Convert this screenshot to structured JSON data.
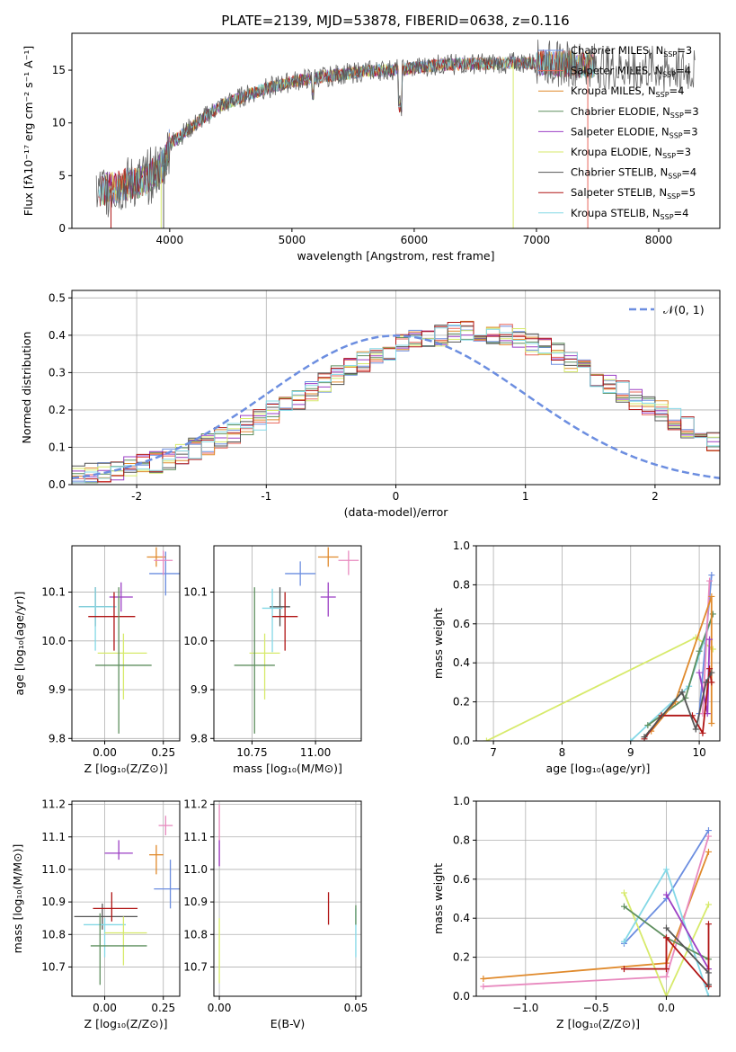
{
  "figure_title": "PLATE=2139, MJD=53878, FIBERID=0638, z=0.116",
  "colors": {
    "chabrier_miles": "#6c8ee0",
    "salpeter_miles": "#e8655a",
    "kroupa_miles": "#e08a2c",
    "chabrier_elodie": "#5f8f5f",
    "salpeter_elodie": "#9b3fc4",
    "kroupa_elodie": "#d7ea6b",
    "chabrier_stelib": "#555555",
    "salpeter_stelib": "#b01515",
    "kroupa_stelib": "#84d8e6",
    "pink": "#e88abf",
    "normal": "#6c8ee0",
    "grid": "#b0b0b0"
  },
  "chart_data": [
    {
      "id": "spectrum",
      "type": "line",
      "xlabel": "wavelength [Angstrom, rest frame]",
      "ylabel": "Flux [fλ10⁻¹⁷ erg cm⁻² s⁻¹ A⁻¹]",
      "xlim": [
        3200,
        8500
      ],
      "ylim": [
        0,
        18.5
      ],
      "xticks": [
        4000,
        5000,
        6000,
        7000,
        8000
      ],
      "yticks": [
        0,
        5,
        10,
        15
      ],
      "grid": false,
      "legend_position": "right",
      "legend": [
        {
          "label": "Chabrier MILES, N",
          "sub": "SSP",
          "tail": "=3",
          "color": "chabrier_miles"
        },
        {
          "label": "Salpeter MILES, N",
          "sub": "SSP",
          "tail": "=4",
          "color": "salpeter_miles"
        },
        {
          "label": "Kroupa MILES, N",
          "sub": "SSP",
          "tail": "=4",
          "color": "kroupa_miles"
        },
        {
          "label": "Chabrier ELODIE, N",
          "sub": "SSP",
          "tail": "=3",
          "color": "chabrier_elodie"
        },
        {
          "label": "Salpeter ELODIE, N",
          "sub": "SSP",
          "tail": "=3",
          "color": "salpeter_elodie"
        },
        {
          "label": "Kroupa ELODIE, N",
          "sub": "SSP",
          "tail": "=3",
          "color": "kroupa_elodie"
        },
        {
          "label": "Chabrier STELIB, N",
          "sub": "SSP",
          "tail": "=4",
          "color": "chabrier_stelib"
        },
        {
          "label": "Salpeter STELIB, N",
          "sub": "SSP",
          "tail": "=5",
          "color": "salpeter_stelib"
        },
        {
          "label": "Kroupa STELIB, N",
          "sub": "SSP",
          "tail": "=4",
          "color": "kroupa_stelib"
        }
      ],
      "continuum": {
        "x": [
          3400,
          3600,
          3800,
          3950,
          4000,
          4200,
          4400,
          4600,
          4800,
          5000,
          5200,
          5400,
          5600,
          5800,
          6000,
          6200,
          6400,
          6600,
          6800,
          7000,
          7200,
          7400,
          7600,
          7800,
          8000,
          8200,
          8350
        ],
        "y": [
          3.5,
          4.0,
          4.6,
          6.0,
          8.0,
          9.8,
          11.5,
          12.5,
          13.3,
          13.9,
          14.3,
          14.6,
          14.9,
          15.0,
          15.2,
          15.5,
          15.6,
          15.6,
          15.7,
          15.7,
          15.6,
          15.5,
          15.3,
          15.2,
          15.1,
          15.0,
          14.9
        ]
      },
      "drops": [
        {
          "x": 3520,
          "y": 0,
          "color": "salpeter_stelib"
        },
        {
          "x": 3930,
          "y": 0,
          "color": "kroupa_elodie"
        },
        {
          "x": 3950,
          "y": 0,
          "color": "chabrier_stelib"
        },
        {
          "x": 6810,
          "y": 0,
          "color": "kroupa_elodie"
        },
        {
          "x": 7420,
          "y": 0,
          "color": "salpeter_miles"
        }
      ]
    },
    {
      "id": "residuals",
      "type": "histogram",
      "xlabel": "(data-model)/error",
      "ylabel": "Normed distribution",
      "xlim": [
        -2.5,
        2.5
      ],
      "ylim": [
        0,
        0.52
      ],
      "xticks": [
        -2,
        -1,
        0,
        1,
        2
      ],
      "yticks": [
        0.0,
        0.1,
        0.2,
        0.3,
        0.4,
        0.5
      ],
      "grid": true,
      "legend_position": "top-right",
      "legend": [
        {
          "label": "𝒩(0, 1)",
          "color": "normal",
          "dashed": true
        }
      ],
      "bin_edges_start": -2.5,
      "bin_width": 0.1,
      "base_values": [
        0.025,
        0.03,
        0.035,
        0.04,
        0.045,
        0.055,
        0.06,
        0.07,
        0.08,
        0.095,
        0.11,
        0.125,
        0.14,
        0.16,
        0.175,
        0.195,
        0.215,
        0.23,
        0.25,
        0.27,
        0.29,
        0.31,
        0.33,
        0.35,
        0.36,
        0.375,
        0.385,
        0.395,
        0.4,
        0.405,
        0.41,
        0.41,
        0.405,
        0.4,
        0.39,
        0.375,
        0.365,
        0.35,
        0.33,
        0.31,
        0.29,
        0.27,
        0.25,
        0.23,
        0.21,
        0.195,
        0.175,
        0.155,
        0.14,
        0.12
      ],
      "series_colors": [
        "chabrier_miles",
        "salpeter_miles",
        "kroupa_miles",
        "chabrier_elodie",
        "salpeter_elodie",
        "kroupa_elodie",
        "chabrier_stelib",
        "salpeter_stelib",
        "kroupa_stelib"
      ]
    },
    {
      "id": "age_vs_Z",
      "type": "errorbar",
      "xlabel": "Z [log₁₀(Z/Z⊙)]",
      "ylabel": "age  [log₁₀(age/yr)]",
      "xlim": [
        -0.14,
        0.32
      ],
      "ylim": [
        9.795,
        10.195
      ],
      "xticks": [
        0.0,
        0.25
      ],
      "xtick_labels": [
        "0.00",
        "0.25"
      ],
      "yticks": [
        9.8,
        9.9,
        10.0,
        10.1
      ],
      "grid": true,
      "points": [
        {
          "x": 0.26,
          "y": 10.138,
          "xl": 0.07,
          "xh": 0.07,
          "yl": 0.045,
          "yh": 0.045,
          "color": "chabrier_miles"
        },
        {
          "x": 0.22,
          "y": 10.172,
          "xl": 0.04,
          "xh": 0.04,
          "yl": 0.02,
          "yh": 0.02,
          "color": "kroupa_miles"
        },
        {
          "x": 0.25,
          "y": 10.165,
          "xl": 0.04,
          "xh": 0.04,
          "yl": 0.03,
          "yh": 0.02,
          "color": "pink"
        },
        {
          "x": 0.07,
          "y": 10.09,
          "xl": 0.05,
          "xh": 0.05,
          "yl": 0.03,
          "yh": 0.03,
          "color": "salpeter_elodie"
        },
        {
          "x": -0.04,
          "y": 10.07,
          "xl": 0.07,
          "xh": 0.07,
          "yl": 0.04,
          "yh": 0.04,
          "color": "chabrier_stelib"
        },
        {
          "x": -0.04,
          "y": 10.07,
          "xl": 0.07,
          "xh": 0.09,
          "yl": 0.09,
          "yh": 0.04,
          "color": "kroupa_stelib"
        },
        {
          "x": 0.04,
          "y": 10.05,
          "xl": 0.11,
          "xh": 0.09,
          "yl": 0.07,
          "yh": 0.05,
          "color": "salpeter_stelib"
        },
        {
          "x": 0.08,
          "y": 9.975,
          "xl": 0.11,
          "xh": 0.1,
          "yl": 0.095,
          "yh": 0.04,
          "color": "kroupa_elodie"
        },
        {
          "x": 0.06,
          "y": 9.95,
          "xl": 0.1,
          "xh": 0.14,
          "yl": 0.14,
          "yh": 0.16,
          "color": "chabrier_elodie"
        }
      ]
    },
    {
      "id": "age_vs_mass",
      "type": "errorbar",
      "xlabel": "mass [log₁₀(M/M⊙)]",
      "ylabel": "",
      "xlim": [
        10.6,
        11.18
      ],
      "ylim": [
        9.795,
        10.195
      ],
      "xticks": [
        10.75,
        11.0
      ],
      "xtick_labels": [
        "10.75",
        "11.00"
      ],
      "yticks": [
        9.8,
        9.9,
        10.0,
        10.1
      ],
      "grid": true,
      "points": [
        {
          "x": 10.94,
          "y": 10.138,
          "xl": 0.06,
          "xh": 0.06,
          "yl": 0.025,
          "yh": 0.025,
          "color": "chabrier_miles"
        },
        {
          "x": 11.05,
          "y": 10.172,
          "xl": 0.04,
          "xh": 0.04,
          "yl": 0.02,
          "yh": 0.02,
          "color": "kroupa_miles"
        },
        {
          "x": 11.13,
          "y": 10.165,
          "xl": 0.04,
          "xh": 0.04,
          "yl": 0.03,
          "yh": 0.02,
          "color": "pink"
        },
        {
          "x": 11.05,
          "y": 10.09,
          "xl": 0.03,
          "xh": 0.03,
          "yl": 0.04,
          "yh": 0.03,
          "color": "salpeter_elodie"
        },
        {
          "x": 10.86,
          "y": 10.07,
          "xl": 0.04,
          "xh": 0.04,
          "yl": 0.04,
          "yh": 0.04,
          "color": "chabrier_stelib"
        },
        {
          "x": 10.83,
          "y": 10.067,
          "xl": 0.04,
          "xh": 0.04,
          "yl": 0.09,
          "yh": 0.04,
          "color": "kroupa_stelib"
        },
        {
          "x": 10.88,
          "y": 10.05,
          "xl": 0.05,
          "xh": 0.05,
          "yl": 0.07,
          "yh": 0.05,
          "color": "salpeter_stelib"
        },
        {
          "x": 10.8,
          "y": 9.975,
          "xl": 0.06,
          "xh": 0.06,
          "yl": 0.095,
          "yh": 0.04,
          "color": "kroupa_elodie"
        },
        {
          "x": 10.76,
          "y": 9.95,
          "xl": 0.08,
          "xh": 0.08,
          "yl": 0.14,
          "yh": 0.16,
          "color": "chabrier_elodie"
        }
      ]
    },
    {
      "id": "weight_vs_age",
      "type": "line",
      "xlabel": "age  [log₁₀(age/yr)]",
      "ylabel": "mass weight",
      "xlim": [
        6.75,
        10.3
      ],
      "ylim": [
        0,
        1.0
      ],
      "xticks": [
        7,
        8,
        9,
        10
      ],
      "xtick_labels": [
        "7",
        "8",
        "9",
        "10"
      ],
      "yticks": [
        0.0,
        0.2,
        0.4,
        0.6,
        0.8,
        1.0
      ],
      "grid": true,
      "series": [
        {
          "color": "kroupa_elodie",
          "x": [
            6.9,
            9.95,
            10.2
          ],
          "y": [
            0.0,
            0.53,
            0.47
          ]
        },
        {
          "color": "kroupa_stelib",
          "x": [
            9.0,
            9.85,
            10.2
          ],
          "y": [
            0.0,
            0.28,
            0.65
          ]
        },
        {
          "color": "chabrier_elodie",
          "x": [
            9.25,
            9.8,
            10.0,
            10.2
          ],
          "y": [
            0.08,
            0.22,
            0.46,
            0.65
          ]
        },
        {
          "color": "chabrier_miles",
          "x": [
            10.0,
            10.18
          ],
          "y": [
            0.14,
            0.85
          ]
        },
        {
          "color": "pink",
          "x": [
            10.05,
            10.15
          ],
          "y": [
            0.14,
            0.82
          ]
        },
        {
          "color": "kroupa_miles",
          "x": [
            9.3,
            9.65,
            10.18,
            10.18
          ],
          "y": [
            0.05,
            0.2,
            0.74,
            0.09
          ]
        },
        {
          "color": "salpeter_elodie",
          "x": [
            10.0,
            10.12,
            10.15
          ],
          "y": [
            0.35,
            0.14,
            0.52
          ]
        },
        {
          "color": "salpeter_stelib",
          "x": [
            9.2,
            9.45,
            9.9,
            10.05,
            10.15,
            10.18
          ],
          "y": [
            0.01,
            0.13,
            0.13,
            0.04,
            0.37,
            0.3
          ]
        },
        {
          "color": "chabrier_stelib",
          "x": [
            9.2,
            9.75,
            9.95,
            10.1,
            10.18
          ],
          "y": [
            0.02,
            0.25,
            0.06,
            0.3,
            0.35
          ]
        }
      ]
    },
    {
      "id": "mass_vs_Z",
      "type": "errorbar",
      "xlabel": "Z [log₁₀(Z/Z⊙)]",
      "ylabel": "mass [log₁₀(M/M⊙)]",
      "xlim": [
        -0.14,
        0.32
      ],
      "ylim": [
        10.61,
        11.21
      ],
      "xticks": [
        0.0,
        0.25
      ],
      "xtick_labels": [
        "0.00",
        "0.25"
      ],
      "yticks": [
        10.7,
        10.8,
        10.9,
        11.0,
        11.1,
        11.2
      ],
      "grid": true,
      "points": [
        {
          "x": 0.26,
          "y": 11.135,
          "xl": 0.03,
          "xh": 0.03,
          "yl": 0.03,
          "yh": 0.03,
          "color": "pink"
        },
        {
          "x": 0.22,
          "y": 11.045,
          "xl": 0.03,
          "xh": 0.03,
          "yl": 0.06,
          "yh": 0.03,
          "color": "kroupa_miles"
        },
        {
          "x": 0.06,
          "y": 11.05,
          "xl": 0.06,
          "xh": 0.06,
          "yl": 0.02,
          "yh": 0.04,
          "color": "salpeter_elodie"
        },
        {
          "x": 0.28,
          "y": 10.94,
          "xl": 0.07,
          "xh": 0.04,
          "yl": 0.06,
          "yh": 0.09,
          "color": "chabrier_miles"
        },
        {
          "x": -0.01,
          "y": 10.855,
          "xl": 0.12,
          "xh": 0.15,
          "yl": 0.04,
          "yh": 0.04,
          "color": "chabrier_stelib"
        },
        {
          "x": 0.03,
          "y": 10.88,
          "xl": 0.08,
          "xh": 0.11,
          "yl": 0.04,
          "yh": 0.05,
          "color": "salpeter_stelib"
        },
        {
          "x": 0.0,
          "y": 10.83,
          "xl": 0.09,
          "xh": 0.09,
          "yl": 0.1,
          "yh": 0.02,
          "color": "kroupa_stelib"
        },
        {
          "x": 0.08,
          "y": 10.805,
          "xl": 0.08,
          "xh": 0.1,
          "yl": 0.1,
          "yh": 0.05,
          "color": "kroupa_elodie"
        },
        {
          "x": -0.02,
          "y": 10.765,
          "xl": 0.04,
          "xh": 0.2,
          "yl": 0.12,
          "yh": 0.1,
          "color": "chabrier_elodie"
        }
      ]
    },
    {
      "id": "mass_vs_ebv",
      "type": "errorbar",
      "xlabel": "E(B-V)",
      "ylabel": "",
      "xlim": [
        -0.002,
        0.052
      ],
      "ylim": [
        10.61,
        11.21
      ],
      "xticks": [
        0.0,
        0.05
      ],
      "xtick_labels": [
        "0.00",
        "0.05"
      ],
      "yticks": [
        10.7,
        10.8,
        10.9,
        11.0,
        11.1,
        11.2
      ],
      "grid": true,
      "points": [
        {
          "x": 0.0,
          "y": 11.1,
          "xl": 0,
          "xh": 0,
          "yl": 0.09,
          "yh": 0.1,
          "color": "pink"
        },
        {
          "x": 0.0,
          "y": 11.05,
          "xl": 0,
          "xh": 0,
          "yl": 0.04,
          "yh": 0.04,
          "color": "salpeter_elodie"
        },
        {
          "x": 0.0,
          "y": 10.75,
          "xl": 0,
          "xh": 0,
          "yl": 0.1,
          "yh": 0.1,
          "color": "kroupa_elodie"
        },
        {
          "x": 0.04,
          "y": 10.88,
          "xl": 0,
          "xh": 0,
          "yl": 0.05,
          "yh": 0.05,
          "color": "salpeter_stelib"
        },
        {
          "x": 0.05,
          "y": 10.83,
          "xl": 0,
          "xh": 0,
          "yl": 0.1,
          "yh": 0.05,
          "color": "kroupa_stelib"
        },
        {
          "x": 0.05,
          "y": 10.87,
          "xl": 0,
          "xh": 0,
          "yl": 0.04,
          "yh": 0.02,
          "color": "chabrier_elodie"
        }
      ]
    },
    {
      "id": "weight_vs_Z",
      "type": "line",
      "xlabel": "Z [log₁₀(Z/Z⊙)]",
      "ylabel": "mass weight",
      "xlim": [
        -1.35,
        0.38
      ],
      "ylim": [
        0,
        1.0
      ],
      "xticks": [
        -1.0,
        -0.5,
        0.0
      ],
      "xtick_labels": [
        "−1.0",
        "−0.5",
        "0.0"
      ],
      "yticks": [
        0.0,
        0.2,
        0.4,
        0.6,
        0.8,
        1.0
      ],
      "grid": true,
      "series": [
        {
          "color": "kroupa_miles",
          "x": [
            -1.3,
            0.0,
            0.3
          ],
          "y": [
            0.09,
            0.17,
            0.74
          ]
        },
        {
          "color": "pink",
          "x": [
            -1.3,
            0.0,
            0.3
          ],
          "y": [
            0.05,
            0.1,
            0.82
          ]
        },
        {
          "color": "chabrier_miles",
          "x": [
            -0.3,
            0.0,
            0.3
          ],
          "y": [
            0.27,
            0.5,
            0.85
          ]
        },
        {
          "color": "kroupa_elodie",
          "x": [
            -0.3,
            0.0,
            0.3
          ],
          "y": [
            0.53,
            0.0,
            0.47
          ]
        },
        {
          "color": "kroupa_stelib",
          "x": [
            -0.3,
            0.0,
            0.3
          ],
          "y": [
            0.28,
            0.65,
            0.0
          ]
        },
        {
          "color": "chabrier_elodie",
          "x": [
            -0.3,
            0.0,
            0.3
          ],
          "y": [
            0.46,
            0.3,
            0.19
          ]
        },
        {
          "color": "salpeter_elodie",
          "x": [
            0.0,
            0.3
          ],
          "y": [
            0.52,
            0.14
          ]
        },
        {
          "color": "salpeter_stelib",
          "x": [
            -0.3,
            0.0,
            0.0,
            0.3,
            0.3
          ],
          "y": [
            0.14,
            0.14,
            0.3,
            0.05,
            0.37
          ]
        },
        {
          "color": "chabrier_stelib",
          "x": [
            0.0,
            0.3,
            0.3
          ],
          "y": [
            0.35,
            0.12,
            0.06
          ]
        }
      ]
    }
  ]
}
